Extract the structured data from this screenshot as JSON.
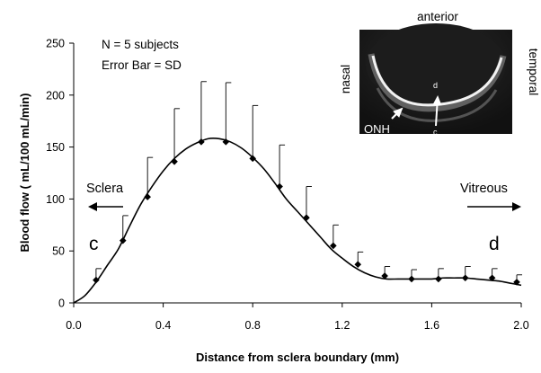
{
  "chart_data": {
    "type": "line",
    "xlabel": "Distance from sclera boundary (mm)",
    "ylabel": "Blood flow ( mL/100 mL/min)",
    "xlim": [
      0,
      2.0
    ],
    "ylim": [
      0,
      250
    ],
    "x_ticks": [
      "0.0",
      "0.4",
      "0.8",
      "1.2",
      "1.6",
      "2.0"
    ],
    "y_ticks": [
      "0",
      "50",
      "100",
      "150",
      "200",
      "250"
    ],
    "grid": false,
    "error_bars": "one-sided upper (SD)",
    "series": [
      {
        "x": [
          0.1,
          0.22,
          0.33,
          0.45,
          0.57,
          0.68,
          0.8,
          0.92,
          1.04,
          1.16,
          1.27,
          1.39,
          1.51,
          1.63,
          1.75,
          1.87,
          1.98
        ],
        "y": [
          22,
          60,
          102,
          136,
          155,
          155,
          139,
          112,
          82,
          55,
          37,
          26,
          23,
          23,
          24,
          24,
          20
        ],
        "error": [
          11,
          24,
          38,
          51,
          58,
          57,
          51,
          40,
          30,
          20,
          12,
          9,
          9,
          10,
          11,
          9,
          7
        ]
      }
    ],
    "curve": {
      "x": [
        0.0,
        0.05,
        0.1,
        0.15,
        0.2,
        0.25,
        0.3,
        0.35,
        0.4,
        0.45,
        0.5,
        0.55,
        0.6,
        0.65,
        0.7,
        0.75,
        0.8,
        0.85,
        0.9,
        0.95,
        1.0,
        1.05,
        1.1,
        1.15,
        1.2,
        1.25,
        1.3,
        1.35,
        1.4,
        1.45,
        1.5,
        1.55,
        1.6,
        1.65,
        1.7,
        1.75,
        1.8,
        1.85,
        1.9,
        1.95,
        2.0
      ],
      "y": [
        0,
        7,
        20,
        36,
        52,
        74,
        95,
        112,
        127,
        139,
        148,
        154,
        158,
        158,
        155,
        149,
        140,
        129,
        115,
        100,
        88,
        76,
        64,
        52,
        43,
        35,
        29,
        25,
        23,
        23,
        23,
        23,
        23,
        24,
        24,
        24,
        23,
        22,
        21,
        19,
        17
      ]
    },
    "annotations": {
      "n_label": "N = 5 subjects",
      "error_label": "Error Bar = SD",
      "left_label": "Sclera",
      "right_label": "Vitreous",
      "left_letter": "c",
      "right_letter": "d"
    },
    "inset": {
      "top_label": "anterior",
      "left_label": "nasal",
      "right_label": "temporal",
      "onh_label": "ONH",
      "arrow_top_label": "d",
      "arrow_bottom_label": "c"
    }
  }
}
